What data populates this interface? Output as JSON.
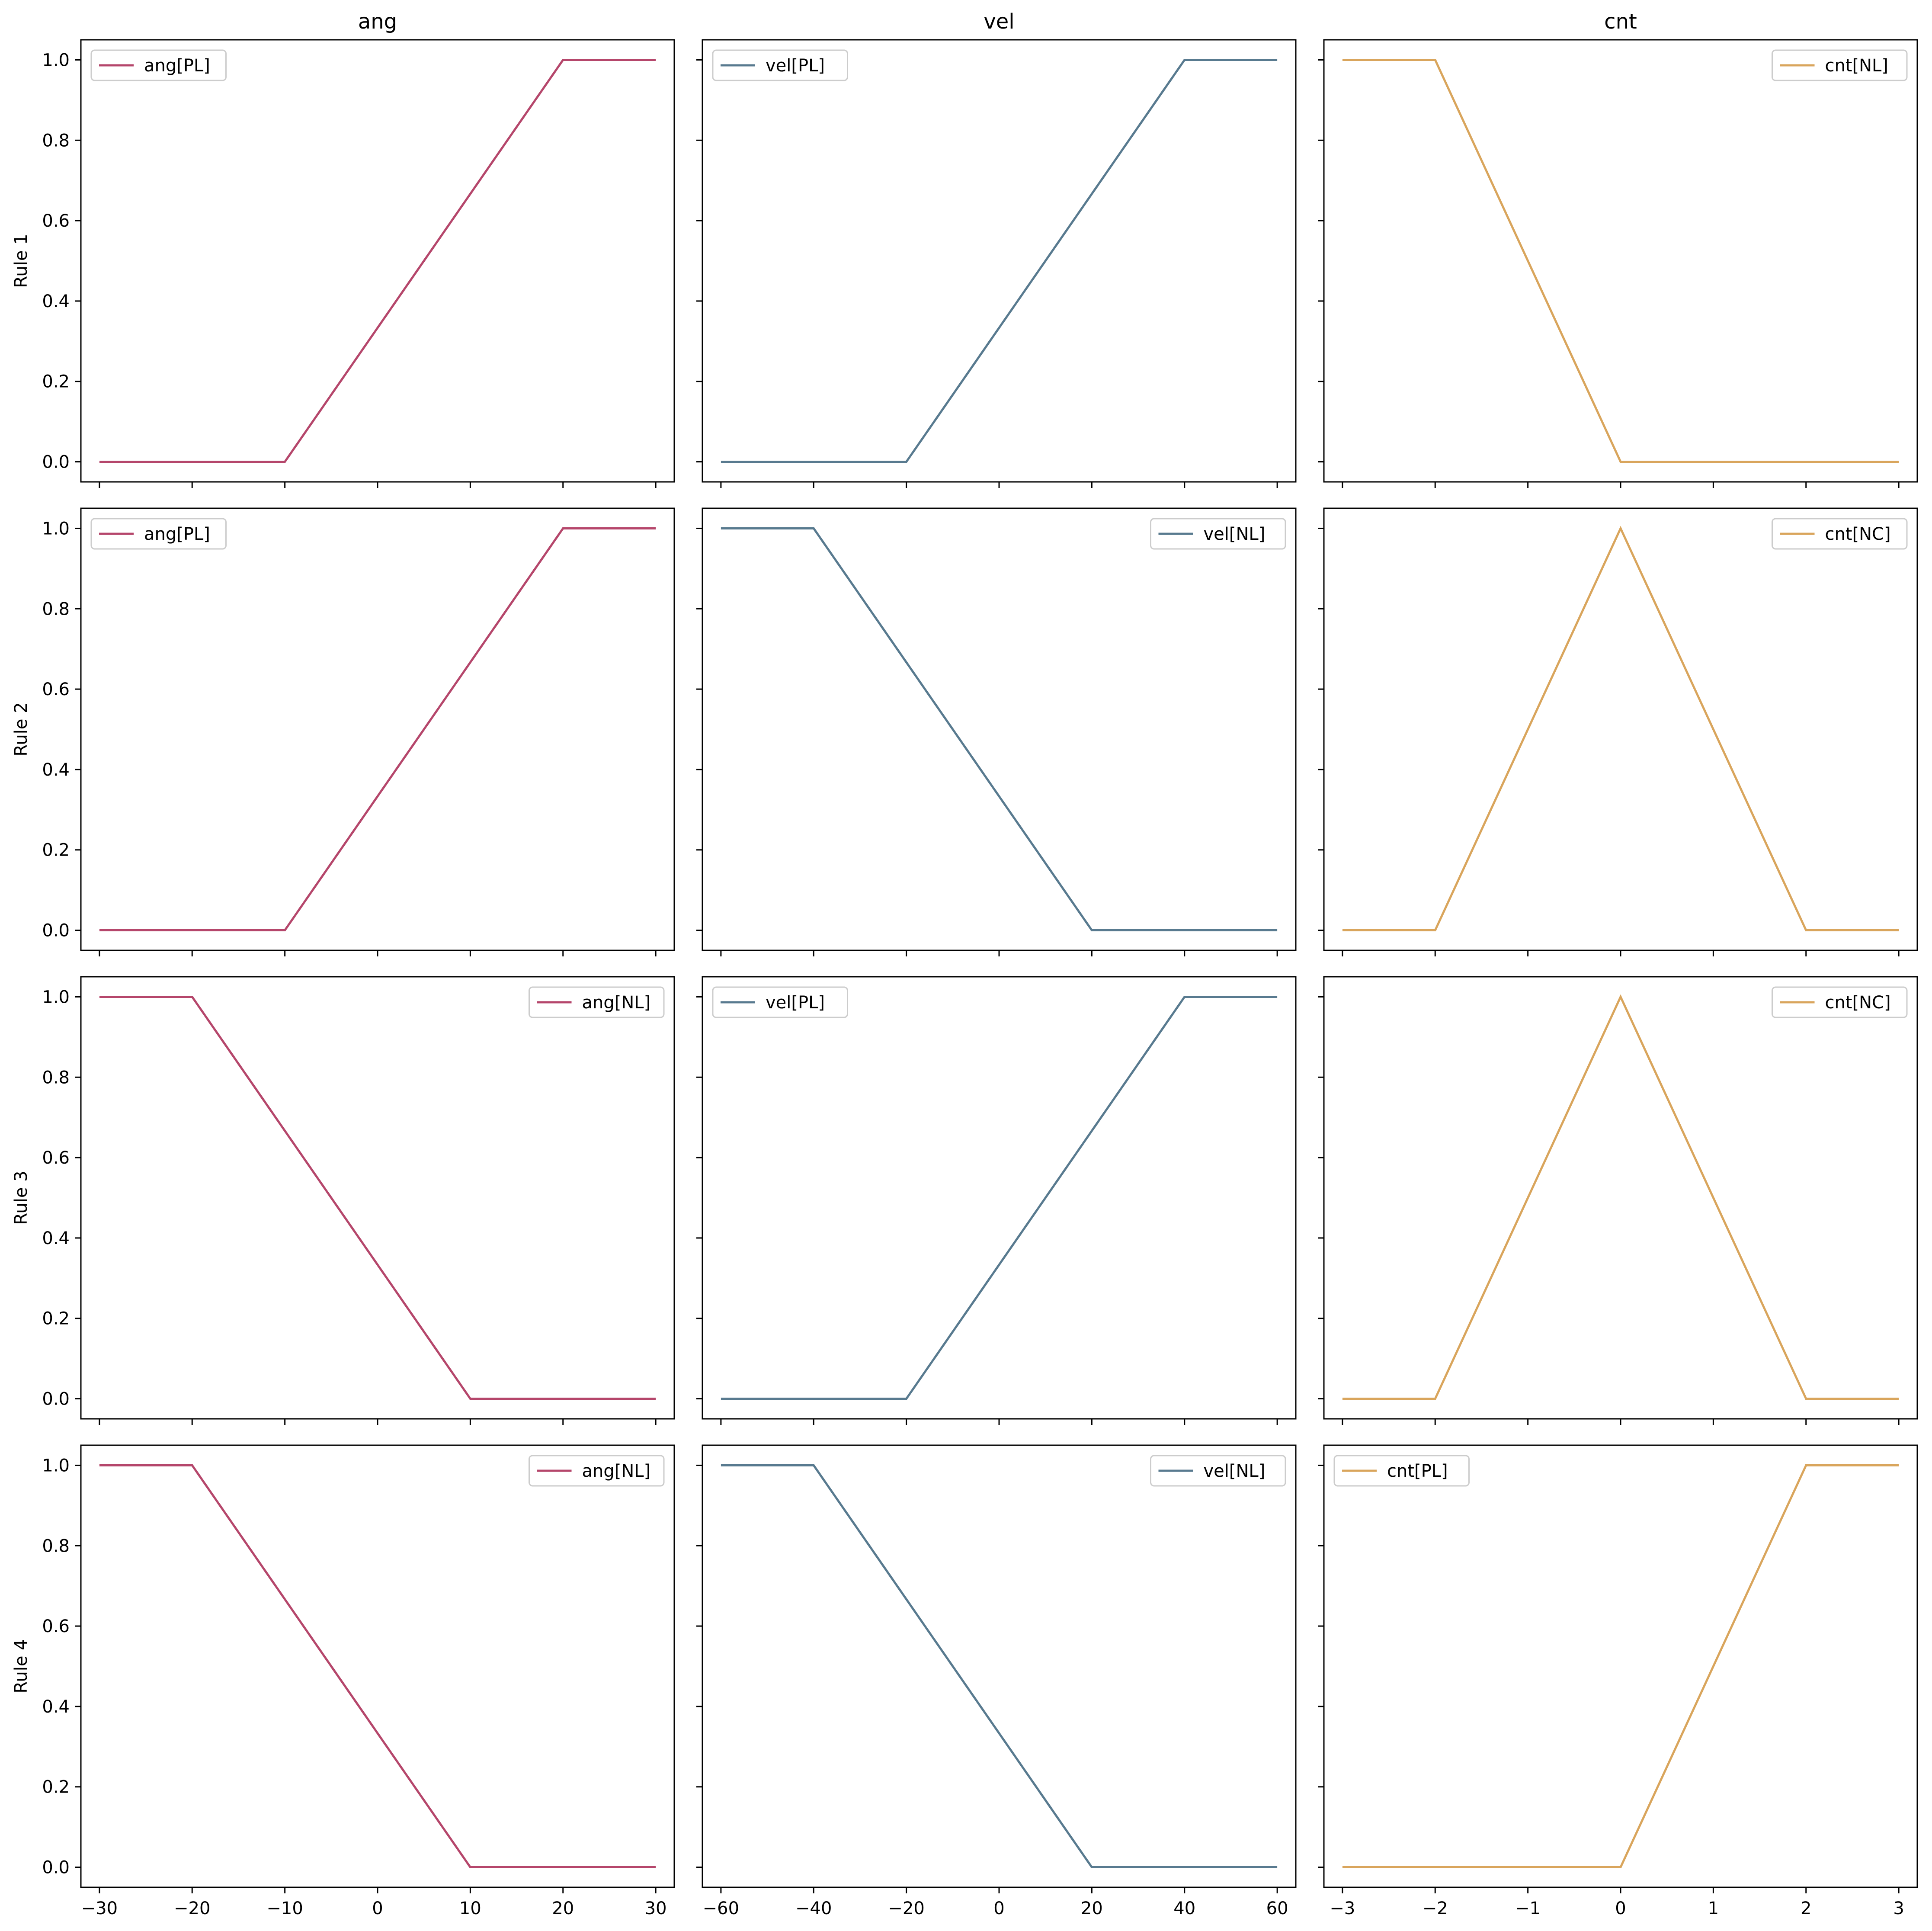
{
  "colors": {
    "ang": "#b5466b",
    "vel": "#587a8f",
    "cnt": "#d9a55c"
  },
  "chart_data": {
    "type": "line",
    "layout": "grid 4 rows x 3 columns, shared x per column, shared y",
    "columns": [
      {
        "key": "ang",
        "title": "ang",
        "xlim": [
          -32,
          32
        ],
        "xticks": [
          -30,
          -20,
          -10,
          0,
          10,
          20,
          30
        ],
        "xtick_labels": [
          "−30",
          "−20",
          "−10",
          "0",
          "10",
          "20",
          "30"
        ]
      },
      {
        "key": "vel",
        "title": "vel",
        "xlim": [
          -64,
          64
        ],
        "xticks": [
          -60,
          -40,
          -20,
          0,
          20,
          40,
          60
        ],
        "xtick_labels": [
          "−60",
          "−40",
          "−20",
          "0",
          "20",
          "40",
          "60"
        ]
      },
      {
        "key": "cnt",
        "title": "cnt",
        "xlim": [
          -3.2,
          3.2
        ],
        "xticks": [
          -3,
          -2,
          -1,
          0,
          1,
          2,
          3
        ],
        "xtick_labels": [
          "−3",
          "−2",
          "−1",
          "0",
          "1",
          "2",
          "3"
        ]
      }
    ],
    "ylim": [
      -0.05,
      1.05
    ],
    "yticks": [
      0.0,
      0.2,
      0.4,
      0.6,
      0.8,
      1.0
    ],
    "ytick_labels": [
      "0.0",
      "0.2",
      "0.4",
      "0.6",
      "0.8",
      "1.0"
    ],
    "grid": false,
    "rows": [
      {
        "label": "Rule 1",
        "panels": [
          {
            "series": "ang[PL]",
            "legend": "upper left",
            "x": [
              -30,
              -10,
              20,
              30
            ],
            "y": [
              0,
              0,
              1,
              1
            ]
          },
          {
            "series": "vel[PL]",
            "legend": "upper left",
            "x": [
              -60,
              -20,
              40,
              60
            ],
            "y": [
              0,
              0,
              1,
              1
            ]
          },
          {
            "series": "cnt[NL]",
            "legend": "upper right",
            "x": [
              -3,
              -2,
              0,
              3
            ],
            "y": [
              1,
              1,
              0,
              0
            ]
          }
        ]
      },
      {
        "label": "Rule 2",
        "panels": [
          {
            "series": "ang[PL]",
            "legend": "upper left",
            "x": [
              -30,
              -10,
              20,
              30
            ],
            "y": [
              0,
              0,
              1,
              1
            ]
          },
          {
            "series": "vel[NL]",
            "legend": "upper right",
            "x": [
              -60,
              -40,
              20,
              60
            ],
            "y": [
              1,
              1,
              0,
              0
            ]
          },
          {
            "series": "cnt[NC]",
            "legend": "upper right",
            "x": [
              -3,
              -2,
              0,
              2,
              3
            ],
            "y": [
              0,
              0,
              1,
              0,
              0
            ]
          }
        ]
      },
      {
        "label": "Rule 3",
        "panels": [
          {
            "series": "ang[NL]",
            "legend": "upper right",
            "x": [
              -30,
              -20,
              10,
              30
            ],
            "y": [
              1,
              1,
              0,
              0
            ]
          },
          {
            "series": "vel[PL]",
            "legend": "upper left",
            "x": [
              -60,
              -20,
              40,
              60
            ],
            "y": [
              0,
              0,
              1,
              1
            ]
          },
          {
            "series": "cnt[NC]",
            "legend": "upper right",
            "x": [
              -3,
              -2,
              0,
              2,
              3
            ],
            "y": [
              0,
              0,
              1,
              0,
              0
            ]
          }
        ]
      },
      {
        "label": "Rule 4",
        "panels": [
          {
            "series": "ang[NL]",
            "legend": "upper right",
            "x": [
              -30,
              -20,
              10,
              30
            ],
            "y": [
              1,
              1,
              0,
              0
            ]
          },
          {
            "series": "vel[NL]",
            "legend": "upper right",
            "x": [
              -60,
              -40,
              20,
              60
            ],
            "y": [
              1,
              1,
              0,
              0
            ]
          },
          {
            "series": "cnt[PL]",
            "legend": "upper left",
            "x": [
              -3,
              0,
              2,
              3
            ],
            "y": [
              0,
              0,
              1,
              1
            ]
          }
        ]
      }
    ]
  }
}
